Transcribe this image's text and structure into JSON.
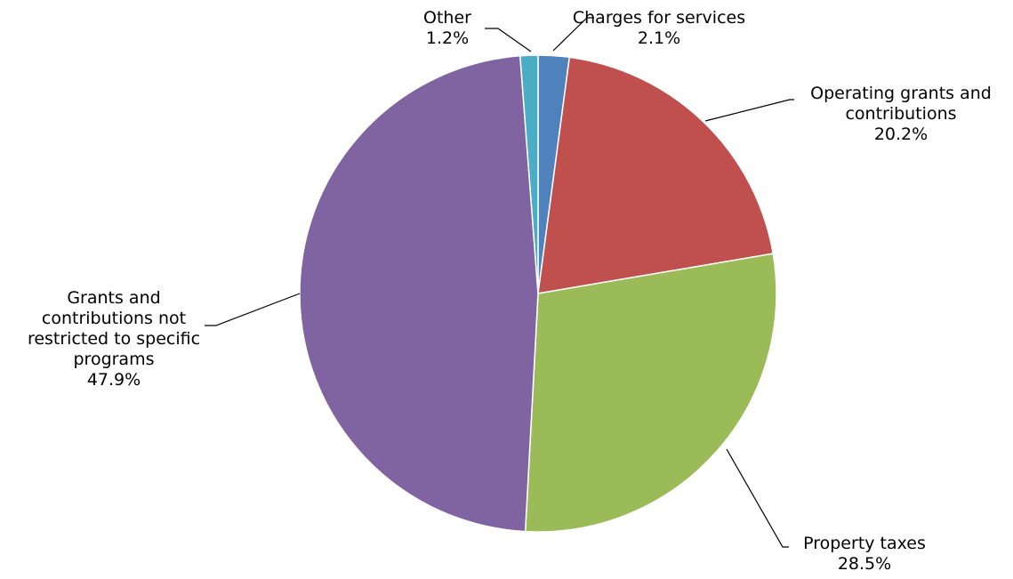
{
  "chart_data": {
    "type": "pie",
    "start_angle_deg": 0,
    "direction": "clockwise",
    "slices": [
      {
        "label_lines": [
          "Charges for services"
        ],
        "pct_label": "2.1%",
        "value": 2.1,
        "color": "#4f81bd"
      },
      {
        "label_lines": [
          "Operating grants and",
          "contributions"
        ],
        "pct_label": "20.2%",
        "value": 20.2,
        "color": "#c0504d"
      },
      {
        "label_lines": [
          "Property taxes"
        ],
        "pct_label": "28.5%",
        "value": 28.5,
        "color": "#9bbb59"
      },
      {
        "label_lines": [
          "Grants and",
          "contributions not",
          "restricted to specific",
          "programs"
        ],
        "pct_label": "47.9%",
        "value": 47.9,
        "color": "#8064a2"
      },
      {
        "label_lines": [
          "Other"
        ],
        "pct_label": "1.2%",
        "value": 1.2,
        "color": "#4bacc6"
      }
    ]
  }
}
